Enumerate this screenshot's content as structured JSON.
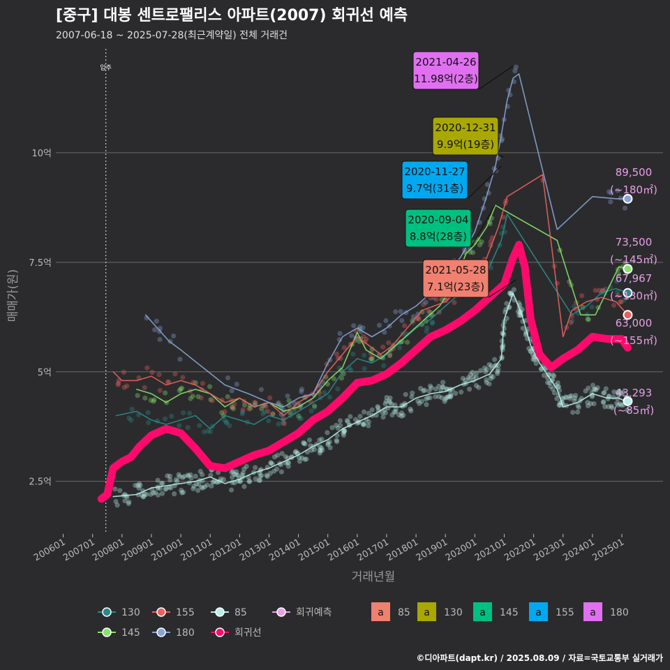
{
  "title": "[중구] 대봉 센트로팰리스 아파트(2007) 회귀선 예측",
  "subtitle": "2007-06-18 ~ 2025-07-28(최근계약일) 전체 거래건",
  "caption": "©디아파트(dapt.kr) / 2025.08.09 / 자료=국토교통부 실거래가",
  "chart_data": {
    "type": "line",
    "xlabel": "거래년월",
    "ylabel": "매매가(원)",
    "x_ticks": [
      "200601",
      "200701",
      "200801",
      "200901",
      "201001",
      "201101",
      "201201",
      "201301",
      "201401",
      "201501",
      "201601",
      "201701",
      "201801",
      "201901",
      "202001",
      "202101",
      "202201",
      "202301",
      "202401",
      "202501"
    ],
    "x_range": [
      2005.75,
      2026.4
    ],
    "y_ticks": [
      {
        "v": 2.5,
        "label": "2.5억"
      },
      {
        "v": 5,
        "label": "5억"
      },
      {
        "v": 7.5,
        "label": "7.5억"
      },
      {
        "v": 10,
        "label": "10억"
      }
    ],
    "ylim": [
      1.3,
      12.5
    ],
    "move_in": {
      "x": 2007.45,
      "label": "입주"
    },
    "series": [
      {
        "name": "85",
        "color": "#b8eee8",
        "points": [
          [
            2007.7,
            2.15
          ],
          [
            2008.5,
            2.2
          ],
          [
            2009.0,
            2.35
          ],
          [
            2009.5,
            2.4
          ],
          [
            2010.0,
            2.45
          ],
          [
            2010.5,
            2.5
          ],
          [
            2011.0,
            2.6
          ],
          [
            2011.5,
            2.45
          ],
          [
            2012.0,
            2.55
          ],
          [
            2012.5,
            2.7
          ],
          [
            2013.0,
            2.8
          ],
          [
            2013.5,
            2.95
          ],
          [
            2014.0,
            3.1
          ],
          [
            2014.5,
            3.3
          ],
          [
            2015.0,
            3.45
          ],
          [
            2015.5,
            3.7
          ],
          [
            2016.0,
            3.85
          ],
          [
            2016.5,
            4.0
          ],
          [
            2017.0,
            4.2
          ],
          [
            2017.5,
            4.2
          ],
          [
            2018.0,
            4.4
          ],
          [
            2018.5,
            4.5
          ],
          [
            2019.0,
            4.55
          ],
          [
            2019.5,
            4.7
          ],
          [
            2020.0,
            4.8
          ],
          [
            2020.5,
            4.95
          ],
          [
            2020.9,
            5.3
          ],
          [
            2021.0,
            6.2
          ],
          [
            2021.3,
            6.8
          ],
          [
            2021.6,
            6.3
          ],
          [
            2021.9,
            5.6
          ],
          [
            2022.2,
            5.2
          ],
          [
            2022.5,
            4.9
          ],
          [
            2022.8,
            4.6
          ],
          [
            2023.0,
            4.2
          ],
          [
            2023.5,
            4.3
          ],
          [
            2024.0,
            4.5
          ],
          [
            2024.5,
            4.4
          ],
          [
            2024.9,
            4.4
          ],
          [
            2025.2,
            4.3
          ]
        ]
      },
      {
        "name": "130",
        "color": "#2a8a8a",
        "points": [
          [
            2007.8,
            4.0
          ],
          [
            2008.5,
            4.1
          ],
          [
            2009.0,
            3.9
          ],
          [
            2009.5,
            3.8
          ],
          [
            2010.0,
            3.9
          ],
          [
            2010.5,
            4.0
          ],
          [
            2011.0,
            3.7
          ],
          [
            2011.5,
            4.0
          ],
          [
            2012.0,
            3.9
          ],
          [
            2012.5,
            3.8
          ],
          [
            2013.0,
            4.0
          ],
          [
            2013.5,
            3.9
          ],
          [
            2014.0,
            4.1
          ],
          [
            2014.5,
            4.3
          ],
          [
            2015.0,
            4.5
          ],
          [
            2015.5,
            5.0
          ],
          [
            2016.0,
            5.3
          ],
          [
            2016.5,
            5.2
          ],
          [
            2017.0,
            5.4
          ],
          [
            2017.5,
            5.7
          ],
          [
            2018.0,
            6.0
          ],
          [
            2018.5,
            6.2
          ],
          [
            2019.0,
            6.5
          ],
          [
            2019.5,
            6.8
          ],
          [
            2020.0,
            7.0
          ],
          [
            2020.5,
            7.4
          ],
          [
            2020.9,
            8.0
          ],
          [
            2021.1,
            8.6
          ],
          [
            2023.3,
            6.3
          ],
          [
            2023.8,
            6.5
          ],
          [
            2024.3,
            6.8
          ],
          [
            2024.8,
            6.9
          ],
          [
            2025.2,
            6.8
          ]
        ]
      },
      {
        "name": "145",
        "color": "#86e36b",
        "points": [
          [
            2008.5,
            4.6
          ],
          [
            2009.0,
            4.5
          ],
          [
            2009.5,
            4.3
          ],
          [
            2010.0,
            4.5
          ],
          [
            2010.5,
            4.6
          ],
          [
            2011.0,
            4.5
          ],
          [
            2011.5,
            4.2
          ],
          [
            2012.0,
            4.4
          ],
          [
            2012.5,
            4.2
          ],
          [
            2013.0,
            4.3
          ],
          [
            2013.5,
            4.1
          ],
          [
            2014.0,
            4.2
          ],
          [
            2014.5,
            4.4
          ],
          [
            2015.0,
            4.8
          ],
          [
            2015.5,
            5.1
          ],
          [
            2016.0,
            5.9
          ],
          [
            2016.3,
            5.5
          ],
          [
            2016.8,
            5.3
          ],
          [
            2017.3,
            5.6
          ],
          [
            2017.8,
            5.9
          ],
          [
            2018.3,
            6.2
          ],
          [
            2018.8,
            6.5
          ],
          [
            2019.3,
            7.0
          ],
          [
            2019.7,
            7.7
          ],
          [
            2020.0,
            7.9
          ],
          [
            2020.4,
            8.3
          ],
          [
            2020.7,
            8.8
          ],
          [
            2022.8,
            8.0
          ],
          [
            2023.6,
            6.3
          ],
          [
            2024.1,
            6.3
          ],
          [
            2024.9,
            7.4
          ],
          [
            2025.2,
            7.35
          ]
        ]
      },
      {
        "name": "155",
        "color": "#e86060",
        "points": [
          [
            2007.7,
            5.0
          ],
          [
            2008.0,
            4.8
          ],
          [
            2008.5,
            4.8
          ],
          [
            2009.0,
            4.9
          ],
          [
            2009.5,
            4.7
          ],
          [
            2010.0,
            4.8
          ],
          [
            2010.5,
            4.7
          ],
          [
            2011.0,
            4.5
          ],
          [
            2011.5,
            4.3
          ],
          [
            2012.0,
            4.4
          ],
          [
            2012.5,
            4.2
          ],
          [
            2013.0,
            4.3
          ],
          [
            2013.5,
            4.0
          ],
          [
            2014.0,
            4.3
          ],
          [
            2014.5,
            4.5
          ],
          [
            2015.0,
            5.0
          ],
          [
            2015.5,
            5.4
          ],
          [
            2016.0,
            5.8
          ],
          [
            2016.4,
            5.6
          ],
          [
            2016.8,
            5.4
          ],
          [
            2017.2,
            5.6
          ],
          [
            2017.7,
            6.0
          ],
          [
            2018.2,
            6.4
          ],
          [
            2018.6,
            6.5
          ],
          [
            2019.0,
            6.6
          ],
          [
            2019.5,
            6.9
          ],
          [
            2020.0,
            7.1
          ],
          [
            2020.4,
            7.6
          ],
          [
            2020.8,
            8.3
          ],
          [
            2021.1,
            9.0
          ],
          [
            2022.3,
            9.5
          ],
          [
            2023.0,
            5.8
          ],
          [
            2023.3,
            6.4
          ],
          [
            2023.8,
            6.6
          ],
          [
            2024.3,
            6.7
          ],
          [
            2024.8,
            6.6
          ],
          [
            2025.2,
            6.3
          ]
        ]
      },
      {
        "name": "180",
        "color": "#8aa4d6",
        "points": [
          [
            2008.8,
            6.3
          ],
          [
            2009.2,
            6.0
          ],
          [
            2009.6,
            5.7
          ],
          [
            2010.0,
            5.5
          ],
          [
            2011.5,
            4.7
          ],
          [
            2012.3,
            4.5
          ],
          [
            2013.0,
            4.3
          ],
          [
            2013.5,
            4.2
          ],
          [
            2014.0,
            4.4
          ],
          [
            2014.5,
            4.5
          ],
          [
            2015.0,
            5.2
          ],
          [
            2015.5,
            5.8
          ],
          [
            2016.0,
            6.0
          ],
          [
            2016.5,
            5.8
          ],
          [
            2017.0,
            6.0
          ],
          [
            2017.5,
            6.3
          ],
          [
            2018.0,
            6.5
          ],
          [
            2018.5,
            6.8
          ],
          [
            2019.0,
            7.3
          ],
          [
            2019.5,
            7.6
          ],
          [
            2020.0,
            8.2
          ],
          [
            2020.4,
            9.0
          ],
          [
            2020.7,
            9.7
          ],
          [
            2020.9,
            10.4
          ],
          [
            2021.1,
            11.2
          ],
          [
            2021.3,
            11.7
          ],
          [
            2021.5,
            11.8
          ],
          [
            2022.8,
            8.25
          ],
          [
            2024.0,
            9.0
          ],
          [
            2024.8,
            8.95
          ],
          [
            2025.2,
            8.95
          ]
        ]
      },
      {
        "name": "회귀선",
        "color": "#ff0a6c",
        "width": 11,
        "points": [
          [
            2007.3,
            2.1
          ],
          [
            2007.5,
            2.2
          ],
          [
            2007.7,
            2.8
          ],
          [
            2008.0,
            2.95
          ],
          [
            2008.3,
            3.05
          ],
          [
            2008.6,
            3.3
          ],
          [
            2009.0,
            3.55
          ],
          [
            2009.5,
            3.7
          ],
          [
            2010.0,
            3.6
          ],
          [
            2010.5,
            3.25
          ],
          [
            2011.0,
            2.85
          ],
          [
            2011.5,
            2.8
          ],
          [
            2012.0,
            2.95
          ],
          [
            2012.5,
            3.1
          ],
          [
            2013.0,
            3.2
          ],
          [
            2013.5,
            3.4
          ],
          [
            2014.0,
            3.6
          ],
          [
            2014.5,
            3.9
          ],
          [
            2015.0,
            4.1
          ],
          [
            2015.5,
            4.4
          ],
          [
            2016.0,
            4.75
          ],
          [
            2016.5,
            4.8
          ],
          [
            2017.0,
            4.95
          ],
          [
            2017.5,
            5.2
          ],
          [
            2018.0,
            5.5
          ],
          [
            2018.5,
            5.8
          ],
          [
            2019.0,
            5.95
          ],
          [
            2019.5,
            6.15
          ],
          [
            2020.0,
            6.4
          ],
          [
            2020.5,
            6.7
          ],
          [
            2021.0,
            7.0
          ],
          [
            2021.3,
            7.6
          ],
          [
            2021.5,
            7.9
          ],
          [
            2021.7,
            7.4
          ],
          [
            2021.9,
            6.2
          ],
          [
            2022.2,
            5.4
          ],
          [
            2022.6,
            5.1
          ],
          [
            2023.0,
            5.3
          ],
          [
            2023.5,
            5.5
          ],
          [
            2024.0,
            5.8
          ],
          [
            2024.5,
            5.75
          ],
          [
            2025.0,
            5.75
          ],
          [
            2025.2,
            5.55
          ]
        ]
      }
    ],
    "endpoints": [
      {
        "series": "180",
        "x": 2025.2,
        "y": 8.95,
        "color": "#8aa4d6",
        "label1": "89,500",
        "label2": "(~180㎡)"
      },
      {
        "series": "145",
        "x": 2025.2,
        "y": 7.35,
        "color": "#86e36b",
        "label1": "73,500",
        "label2": "(~145㎡)"
      },
      {
        "series": "130",
        "x": 2025.2,
        "y": 6.8,
        "color": "#2a8a8a",
        "label1": "67,967",
        "label2": "(~130㎡)"
      },
      {
        "series": "155",
        "x": 2025.2,
        "y": 6.3,
        "color": "#e86060",
        "label1": "63,000",
        "label2": "(~155㎡)"
      },
      {
        "series": "85",
        "x": 2025.2,
        "y": 4.33,
        "color": "#b8eee8",
        "label1": "43,293",
        "label2": "(~85㎡)"
      }
    ],
    "callouts": [
      {
        "date": "2021-04-26",
        "price": "11.98억(2층)",
        "color": "#e070f0",
        "x": 2021.3,
        "y": 11.98
      },
      {
        "date": "2020-12-31",
        "price": "9.9억(19층)",
        "color": "#a8a800",
        "x": 2021.0,
        "y": 9.9
      },
      {
        "date": "2020-11-27",
        "price": "9.7억(31층)",
        "color": "#00a8f0",
        "x": 2020.9,
        "y": 9.7
      },
      {
        "date": "2020-09-04",
        "price": "8.8억(28층)",
        "color": "#00c080",
        "x": 2020.68,
        "y": 8.8
      },
      {
        "date": "2021-05-28",
        "price": "7.1억(23층)",
        "color": "#f08070",
        "x": 2021.4,
        "y": 7.1
      }
    ],
    "legend": [
      {
        "label": "130",
        "color": "#2a8a8a",
        "kind": "line"
      },
      {
        "label": "155",
        "color": "#e86060",
        "kind": "line"
      },
      {
        "label": "85",
        "color": "#b8eee8",
        "kind": "line"
      },
      {
        "label": "회귀예측",
        "color": "#e6a0e6",
        "kind": "line"
      },
      {
        "label": "145",
        "color": "#86e36b",
        "kind": "line"
      },
      {
        "label": "180",
        "color": "#8aa4d6",
        "kind": "line"
      },
      {
        "label": "회귀선",
        "color": "#ff0a6c",
        "kind": "line"
      },
      {
        "label": "85",
        "color": "#f08070",
        "kind": "box",
        "glyph": "a"
      },
      {
        "label": "130",
        "color": "#a8a800",
        "kind": "box",
        "glyph": "a"
      },
      {
        "label": "145",
        "color": "#00c080",
        "kind": "box",
        "glyph": "a"
      },
      {
        "label": "155",
        "color": "#00a8f0",
        "kind": "box",
        "glyph": "a"
      },
      {
        "label": "180",
        "color": "#e070f0",
        "kind": "box",
        "glyph": "a"
      }
    ]
  }
}
